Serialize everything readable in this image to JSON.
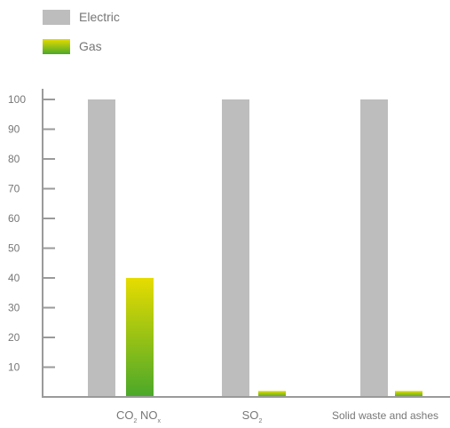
{
  "legend": {
    "electric_label": "Electric",
    "gas_label": "Gas"
  },
  "chart_data": {
    "type": "bar",
    "categories": [
      {
        "main": "CO",
        "sub": "2",
        "main2": " NO",
        "sub2": "x"
      },
      {
        "main": "SO",
        "sub": "2"
      },
      {
        "main": "Solid waste and ashes"
      }
    ],
    "series": [
      {
        "name": "Electric",
        "values": [
          100,
          100,
          100
        ],
        "color": "#bdbdbd"
      },
      {
        "name": "Gas",
        "values": [
          40,
          2,
          2
        ],
        "color_top": "#e6dc00",
        "color_bottom": "#4aa82a"
      }
    ],
    "ylim": [
      0,
      100
    ],
    "yticks": [
      10,
      20,
      30,
      40,
      50,
      60,
      70,
      80,
      90,
      100
    ],
    "grid": false,
    "legend_position": "top-left",
    "axis_color": "#9a9a9a"
  }
}
